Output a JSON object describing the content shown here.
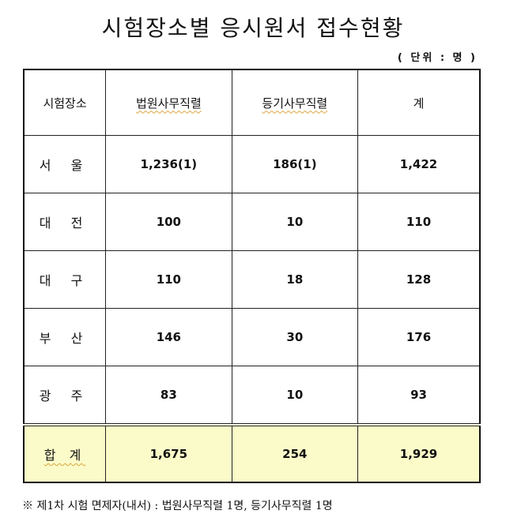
{
  "title": "시험장소별 응시원서 접수현황",
  "unit": "( 단위 : 명 )",
  "table": {
    "headers": [
      "시험장소",
      "법원사무직렬",
      "등기사무직렬",
      "계"
    ],
    "rows": [
      [
        "서 울",
        "1,236(1)",
        "186(1)",
        "1,422"
      ],
      [
        "대 전",
        "100",
        "10",
        "110"
      ],
      [
        "대 구",
        "110",
        "18",
        "128"
      ],
      [
        "부 산",
        "146",
        "30",
        "176"
      ],
      [
        "광 주",
        "83",
        "10",
        "93"
      ]
    ],
    "total": [
      "합 계",
      "1,675",
      "254",
      "1,929"
    ]
  },
  "footnote": "※ 제1차 시험 면제자(내서) : 법원사무직렬 1명, 등기사무직렬 1명",
  "colors": {
    "total_row_bg": "#fbfbc9"
  }
}
